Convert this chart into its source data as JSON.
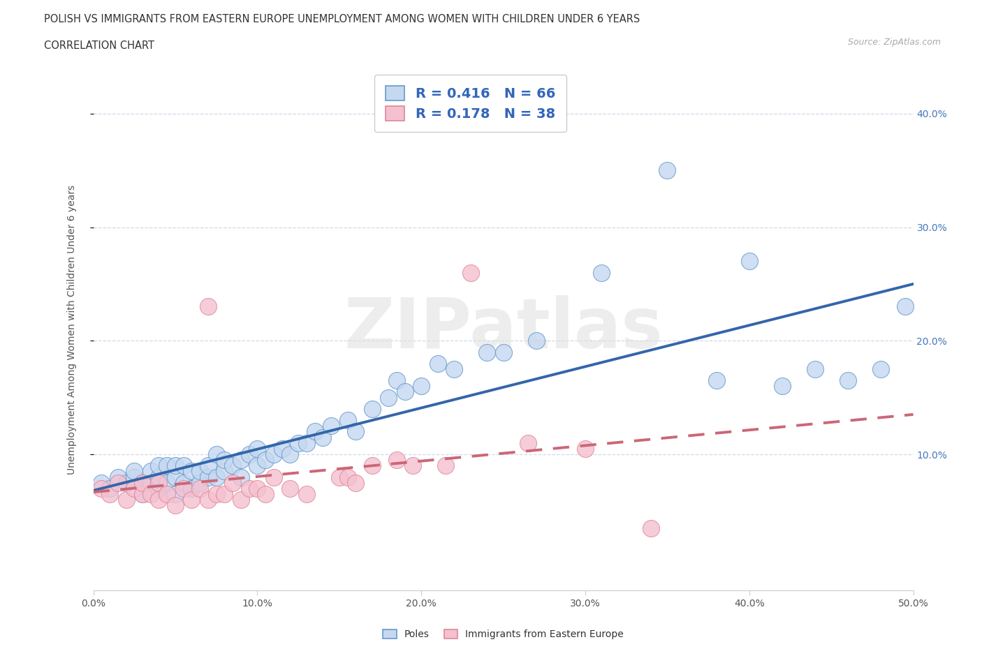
{
  "title_line1": "POLISH VS IMMIGRANTS FROM EASTERN EUROPE UNEMPLOYMENT AMONG WOMEN WITH CHILDREN UNDER 6 YEARS",
  "title_line2": "CORRELATION CHART",
  "source": "Source: ZipAtlas.com",
  "ylabel": "Unemployment Among Women with Children Under 6 years",
  "xlim": [
    0.0,
    0.5
  ],
  "ylim": [
    -0.02,
    0.44
  ],
  "xtick_vals": [
    0.0,
    0.1,
    0.2,
    0.3,
    0.4,
    0.5
  ],
  "ytick_right_vals": [
    0.1,
    0.2,
    0.3,
    0.4
  ],
  "blue_face": "#c5d8f0",
  "blue_edge": "#6699cc",
  "blue_line": "#3366aa",
  "pink_face": "#f5c0d0",
  "pink_edge": "#dd8899",
  "pink_line": "#cc6677",
  "legend_text_color": "#3366bb",
  "blue_R": "0.416",
  "blue_N": "66",
  "pink_R": "0.178",
  "pink_N": "38",
  "poles_x": [
    0.005,
    0.01,
    0.015,
    0.02,
    0.025,
    0.025,
    0.03,
    0.03,
    0.035,
    0.035,
    0.04,
    0.04,
    0.04,
    0.045,
    0.045,
    0.05,
    0.05,
    0.05,
    0.055,
    0.055,
    0.06,
    0.06,
    0.065,
    0.065,
    0.07,
    0.07,
    0.075,
    0.075,
    0.08,
    0.08,
    0.085,
    0.09,
    0.09,
    0.095,
    0.1,
    0.1,
    0.105,
    0.11,
    0.115,
    0.12,
    0.125,
    0.13,
    0.135,
    0.14,
    0.145,
    0.155,
    0.16,
    0.17,
    0.18,
    0.185,
    0.19,
    0.2,
    0.21,
    0.22,
    0.24,
    0.25,
    0.27,
    0.31,
    0.35,
    0.38,
    0.4,
    0.42,
    0.44,
    0.46,
    0.48,
    0.495
  ],
  "poles_y": [
    0.075,
    0.07,
    0.08,
    0.075,
    0.08,
    0.085,
    0.065,
    0.075,
    0.075,
    0.085,
    0.07,
    0.08,
    0.09,
    0.075,
    0.09,
    0.065,
    0.08,
    0.09,
    0.075,
    0.09,
    0.07,
    0.085,
    0.075,
    0.085,
    0.08,
    0.09,
    0.08,
    0.1,
    0.085,
    0.095,
    0.09,
    0.08,
    0.095,
    0.1,
    0.09,
    0.105,
    0.095,
    0.1,
    0.105,
    0.1,
    0.11,
    0.11,
    0.12,
    0.115,
    0.125,
    0.13,
    0.12,
    0.14,
    0.15,
    0.165,
    0.155,
    0.16,
    0.18,
    0.175,
    0.19,
    0.19,
    0.2,
    0.26,
    0.35,
    0.165,
    0.27,
    0.16,
    0.175,
    0.165,
    0.175,
    0.23
  ],
  "immigrants_x": [
    0.005,
    0.01,
    0.015,
    0.02,
    0.025,
    0.03,
    0.03,
    0.035,
    0.04,
    0.04,
    0.045,
    0.05,
    0.055,
    0.06,
    0.065,
    0.07,
    0.07,
    0.075,
    0.08,
    0.085,
    0.09,
    0.095,
    0.1,
    0.105,
    0.11,
    0.12,
    0.13,
    0.15,
    0.155,
    0.16,
    0.17,
    0.185,
    0.195,
    0.215,
    0.23,
    0.265,
    0.3,
    0.34
  ],
  "immigrants_y": [
    0.07,
    0.065,
    0.075,
    0.06,
    0.07,
    0.065,
    0.075,
    0.065,
    0.06,
    0.075,
    0.065,
    0.055,
    0.07,
    0.06,
    0.07,
    0.06,
    0.23,
    0.065,
    0.065,
    0.075,
    0.06,
    0.07,
    0.07,
    0.065,
    0.08,
    0.07,
    0.065,
    0.08,
    0.08,
    0.075,
    0.09,
    0.095,
    0.09,
    0.09,
    0.26,
    0.11,
    0.105,
    0.035
  ],
  "background": "#ffffff",
  "grid_color": "#d0d8e8",
  "watermark": "ZIPatlas"
}
